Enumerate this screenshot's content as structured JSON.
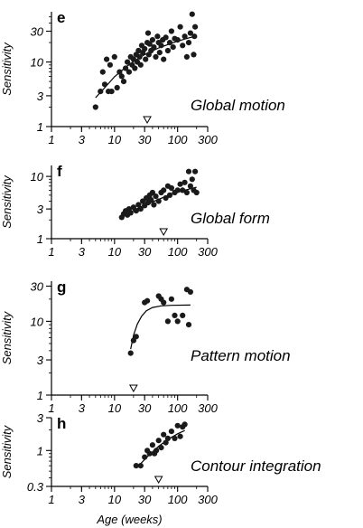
{
  "chart_data": [
    {
      "type": "scatter",
      "panel": "e",
      "label": "Global motion",
      "ylabel": "Sensitivity",
      "xlabel": "",
      "x_scale": "log",
      "y_scale": "log",
      "xlim": [
        1,
        300
      ],
      "ylim": [
        1,
        60
      ],
      "x_ticks": [
        1,
        3,
        10,
        30,
        100,
        300
      ],
      "x_tick_labels": [
        "1",
        "3",
        "10",
        "30",
        "100",
        "300"
      ],
      "y_ticks": [
        1,
        3,
        10,
        30
      ],
      "y_tick_labels": [
        "1",
        "3",
        "10",
        "30"
      ],
      "marker_x": 33,
      "points": [
        [
          5,
          2
        ],
        [
          6,
          3.5
        ],
        [
          6.5,
          7
        ],
        [
          7,
          4.5
        ],
        [
          7.5,
          11
        ],
        [
          8,
          3.5
        ],
        [
          8.5,
          9
        ],
        [
          9,
          3.5
        ],
        [
          10,
          12
        ],
        [
          11,
          4
        ],
        [
          12,
          7
        ],
        [
          13,
          6
        ],
        [
          14,
          5
        ],
        [
          15,
          8
        ],
        [
          16,
          10
        ],
        [
          17,
          7
        ],
        [
          18,
          12
        ],
        [
          19,
          9
        ],
        [
          20,
          11
        ],
        [
          21,
          8
        ],
        [
          22,
          13
        ],
        [
          23,
          10
        ],
        [
          24,
          15
        ],
        [
          25,
          12
        ],
        [
          26,
          9
        ],
        [
          27,
          18
        ],
        [
          28,
          14
        ],
        [
          30,
          16
        ],
        [
          31,
          11
        ],
        [
          33,
          20
        ],
        [
          34,
          28
        ],
        [
          35,
          13
        ],
        [
          36,
          19
        ],
        [
          38,
          15
        ],
        [
          40,
          22
        ],
        [
          42,
          17
        ],
        [
          45,
          12
        ],
        [
          48,
          25
        ],
        [
          50,
          20
        ],
        [
          52,
          14
        ],
        [
          55,
          18
        ],
        [
          58,
          22
        ],
        [
          60,
          11
        ],
        [
          65,
          24
        ],
        [
          70,
          15
        ],
        [
          75,
          20
        ],
        [
          80,
          30
        ],
        [
          85,
          17
        ],
        [
          90,
          23
        ],
        [
          100,
          22
        ],
        [
          110,
          35
        ],
        [
          120,
          18
        ],
        [
          130,
          25
        ],
        [
          140,
          12
        ],
        [
          150,
          20
        ],
        [
          160,
          28
        ],
        [
          170,
          55
        ],
        [
          180,
          13
        ],
        [
          185,
          25
        ],
        [
          190,
          35
        ]
      ],
      "curve": [
        [
          5,
          2.8
        ],
        [
          7,
          4.0
        ],
        [
          10,
          5.9
        ],
        [
          15,
          8.3
        ],
        [
          20,
          10.2
        ],
        [
          30,
          13.0
        ],
        [
          50,
          16.5
        ],
        [
          70,
          18.6
        ],
        [
          100,
          21.0
        ],
        [
          150,
          23.6
        ],
        [
          190,
          25.0
        ]
      ]
    },
    {
      "type": "scatter",
      "panel": "f",
      "label": "Global form",
      "ylabel": "Sensitivity",
      "xlabel": "",
      "x_scale": "log",
      "y_scale": "log",
      "xlim": [
        1,
        300
      ],
      "ylim": [
        1,
        15
      ],
      "x_ticks": [
        1,
        3,
        10,
        30,
        100,
        300
      ],
      "x_tick_labels": [
        "1",
        "3",
        "10",
        "30",
        "100",
        "300"
      ],
      "y_ticks": [
        1,
        3,
        10
      ],
      "y_tick_labels": [
        "1",
        "3",
        "10"
      ],
      "marker_x": 60,
      "points": [
        [
          13,
          2.2
        ],
        [
          14,
          2.5
        ],
        [
          15,
          2.8
        ],
        [
          16,
          2.4
        ],
        [
          17,
          3.0
        ],
        [
          18,
          2.6
        ],
        [
          20,
          3.2
        ],
        [
          22,
          2.8
        ],
        [
          24,
          3.5
        ],
        [
          26,
          3.0
        ],
        [
          28,
          4.0
        ],
        [
          30,
          3.4
        ],
        [
          32,
          4.5
        ],
        [
          34,
          3.8
        ],
        [
          36,
          5.0
        ],
        [
          38,
          4.2
        ],
        [
          40,
          5.5
        ],
        [
          42,
          3.5
        ],
        [
          45,
          4.8
        ],
        [
          50,
          4.0
        ],
        [
          55,
          5.5
        ],
        [
          60,
          6.0
        ],
        [
          65,
          4.5
        ],
        [
          70,
          7.0
        ],
        [
          75,
          5.0
        ],
        [
          80,
          6.5
        ],
        [
          90,
          5.5
        ],
        [
          100,
          6.0
        ],
        [
          110,
          7.5
        ],
        [
          120,
          6.0
        ],
        [
          130,
          8.0
        ],
        [
          140,
          5.5
        ],
        [
          150,
          12.0
        ],
        [
          160,
          7.0
        ],
        [
          170,
          9.0
        ],
        [
          180,
          6.0
        ],
        [
          190,
          12.0
        ],
        [
          200,
          5.5
        ]
      ],
      "curve": [
        [
          13,
          2.2
        ],
        [
          20,
          2.85
        ],
        [
          30,
          3.45
        ],
        [
          50,
          4.3
        ],
        [
          80,
          5.2
        ],
        [
          120,
          5.9
        ],
        [
          200,
          6.7
        ]
      ]
    },
    {
      "type": "scatter",
      "panel": "g",
      "label": "Pattern motion",
      "ylabel": "Sensitivity",
      "xlabel": "",
      "x_scale": "log",
      "y_scale": "log",
      "xlim": [
        1,
        300
      ],
      "ylim": [
        1,
        35
      ],
      "x_ticks": [
        1,
        3,
        10,
        30,
        100,
        300
      ],
      "x_tick_labels": [
        "1",
        "3",
        "10",
        "30",
        "100",
        "300"
      ],
      "y_ticks": [
        1,
        3,
        10,
        30
      ],
      "y_tick_labels": [
        "1",
        "3",
        "10",
        "30"
      ],
      "marker_x": 20,
      "points": [
        [
          18,
          3.7
        ],
        [
          20,
          5.5
        ],
        [
          22,
          6.2
        ],
        [
          30,
          18
        ],
        [
          33,
          19
        ],
        [
          50,
          22
        ],
        [
          55,
          20
        ],
        [
          60,
          18
        ],
        [
          70,
          10
        ],
        [
          80,
          20
        ],
        [
          90,
          12
        ],
        [
          100,
          10
        ],
        [
          120,
          12
        ],
        [
          140,
          27
        ],
        [
          150,
          9
        ],
        [
          160,
          25
        ]
      ],
      "curve": [
        [
          18,
          4.2
        ],
        [
          20,
          6.5
        ],
        [
          23,
          9.2
        ],
        [
          27,
          11.8
        ],
        [
          32,
          13.9
        ],
        [
          40,
          15.4
        ],
        [
          55,
          16.2
        ],
        [
          80,
          16.5
        ],
        [
          160,
          16.6
        ]
      ]
    },
    {
      "type": "scatter",
      "panel": "h",
      "label": "Contour integration",
      "ylabel": "Sensitivity",
      "xlabel": "Age (weeks)",
      "x_scale": "log",
      "y_scale": "log",
      "xlim": [
        1,
        300
      ],
      "ylim": [
        0.3,
        3
      ],
      "x_ticks": [
        1,
        3,
        10,
        30,
        100,
        300
      ],
      "x_tick_labels": [
        "1",
        "3",
        "10",
        "30",
        "100",
        "300"
      ],
      "y_ticks": [
        0.3,
        1,
        3
      ],
      "y_tick_labels": [
        "0.3",
        "1",
        "3"
      ],
      "marker_x": 50,
      "points": [
        [
          22,
          0.6
        ],
        [
          26,
          0.6
        ],
        [
          30,
          0.8
        ],
        [
          33,
          1.0
        ],
        [
          36,
          0.9
        ],
        [
          40,
          1.2
        ],
        [
          43,
          0.9
        ],
        [
          46,
          1.0
        ],
        [
          50,
          1.4
        ],
        [
          55,
          1.1
        ],
        [
          60,
          1.7
        ],
        [
          65,
          1.3
        ],
        [
          70,
          1.5
        ],
        [
          80,
          1.9
        ],
        [
          90,
          1.5
        ],
        [
          100,
          2.3
        ],
        [
          110,
          1.6
        ],
        [
          120,
          2.2
        ],
        [
          130,
          2.4
        ]
      ],
      "curve": [
        [
          25,
          0.62
        ],
        [
          35,
          0.85
        ],
        [
          50,
          1.15
        ],
        [
          70,
          1.45
        ],
        [
          100,
          1.75
        ],
        [
          130,
          1.95
        ]
      ]
    }
  ]
}
